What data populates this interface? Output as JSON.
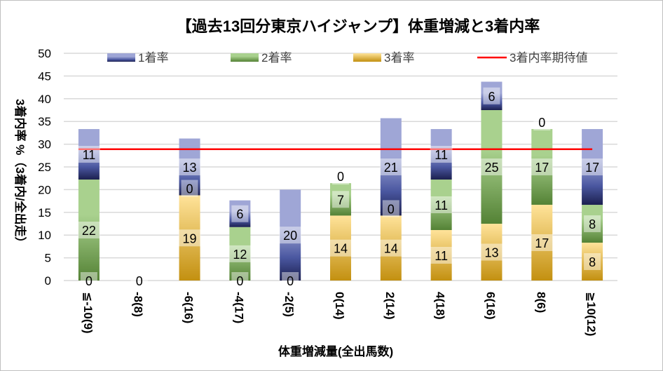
{
  "chart_data": {
    "type": "bar",
    "stacked": true,
    "title": "【過去13回分東京ハイジャンプ】体重増減と3着内率",
    "xlabel": "体重増減量(全出馬数)",
    "ylabel": "3着内率 %（3着内/全出走）",
    "ylim": [
      0,
      50
    ],
    "yticks": [
      0,
      5,
      10,
      15,
      20,
      25,
      30,
      35,
      40,
      45,
      50
    ],
    "grid": true,
    "legend_position": "top",
    "categories": [
      "≦-10(9)",
      "-8(8)",
      "-6(16)",
      "-4(17)",
      "-2(5)",
      "0(14)",
      "2(14)",
      "4(18)",
      "6(16)",
      "8(6)",
      "≧10(12)"
    ],
    "series": [
      {
        "name": "3着率",
        "color": "#e0b040",
        "values": [
          0,
          0,
          18.75,
          0,
          0,
          14.29,
          14.29,
          11.11,
          12.5,
          16.67,
          8.33
        ],
        "labels": [
          "0",
          "0",
          "19",
          "0",
          "0",
          "14",
          "14",
          "11",
          "13",
          "17",
          "8"
        ]
      },
      {
        "name": "2着率",
        "color": "#70a850",
        "values": [
          22.22,
          0,
          0,
          11.76,
          0,
          7.14,
          0,
          11.11,
          25,
          16.67,
          8.33
        ],
        "labels": [
          "22",
          "",
          "0",
          "12",
          "",
          "7",
          "0",
          "11",
          "25",
          "17",
          "8"
        ]
      },
      {
        "name": "1着率",
        "color": "#4050a0",
        "values": [
          11.11,
          0,
          12.5,
          5.88,
          20,
          0,
          21.43,
          11.11,
          6.25,
          0,
          16.67
        ],
        "labels": [
          "11",
          "",
          "13",
          "6",
          "20",
          "0",
          "21",
          "11",
          "6",
          "0",
          "17"
        ]
      }
    ],
    "reference_line": {
      "name": "3着内率期待値",
      "value": 28.9,
      "color": "#ff0000"
    }
  }
}
